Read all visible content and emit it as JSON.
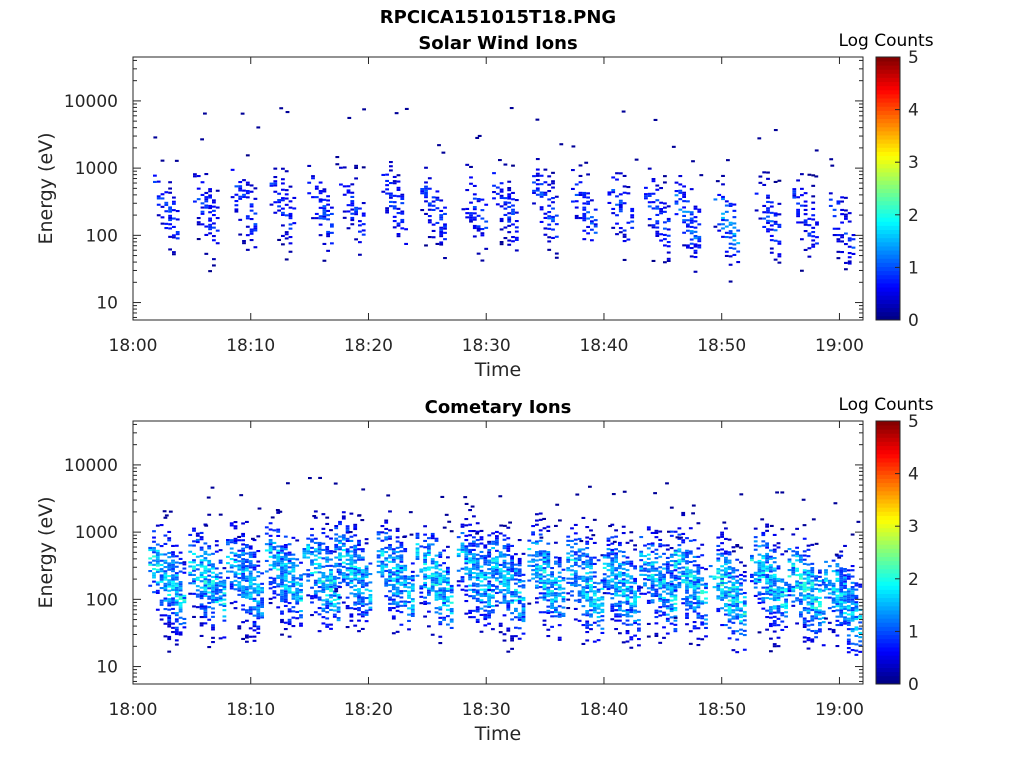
{
  "page_title": "RPCICA151015T18.PNG",
  "chart_data": [
    {
      "type": "heatmap",
      "title": "Solar Wind Ions",
      "xlabel": "Time",
      "ylabel": "Energy (eV)",
      "x_ticks": [
        "18:00",
        "18:10",
        "18:20",
        "18:30",
        "18:40",
        "18:50",
        "19:00"
      ],
      "x_range": [
        "18:00",
        "19:02"
      ],
      "y_scale": "log",
      "y_range": [
        5.5,
        45000
      ],
      "y_ticks": [
        10,
        100,
        1000,
        10000
      ],
      "y_tick_labels": [
        "10",
        "100",
        "1000",
        "10000"
      ],
      "colorbar": {
        "label": "Log Counts",
        "range": [
          0,
          5
        ],
        "ticks": [
          "0",
          "1",
          "2",
          "3",
          "4",
          "5"
        ],
        "colormap": "jet"
      },
      "grid": false,
      "bursts": [
        {
          "t": 2.9,
          "e": 220,
          "intensity": 0.9
        },
        {
          "t": 6.3,
          "e": 200,
          "intensity": 0.9
        },
        {
          "t": 9.5,
          "e": 250,
          "intensity": 0.9
        },
        {
          "t": 12.8,
          "e": 240,
          "intensity": 0.9
        },
        {
          "t": 16.0,
          "e": 230,
          "intensity": 1.0
        },
        {
          "t": 18.7,
          "e": 250,
          "intensity": 0.9
        },
        {
          "t": 22.3,
          "e": 260,
          "intensity": 0.9
        },
        {
          "t": 25.6,
          "e": 230,
          "intensity": 0.9
        },
        {
          "t": 29.1,
          "e": 220,
          "intensity": 0.9
        },
        {
          "t": 31.7,
          "e": 240,
          "intensity": 0.9
        },
        {
          "t": 35.1,
          "e": 250,
          "intensity": 1.0
        },
        {
          "t": 38.4,
          "e": 200,
          "intensity": 1.0
        },
        {
          "t": 41.5,
          "e": 220,
          "intensity": 1.0
        },
        {
          "t": 44.6,
          "e": 180,
          "intensity": 1.0
        },
        {
          "t": 47.2,
          "e": 150,
          "intensity": 1.2
        },
        {
          "t": 50.5,
          "e": 130,
          "intensity": 1.4
        },
        {
          "t": 54.0,
          "e": 170,
          "intensity": 1.0
        },
        {
          "t": 57.2,
          "e": 160,
          "intensity": 0.9
        },
        {
          "t": 60.3,
          "e": 120,
          "intensity": 0.9
        }
      ]
    },
    {
      "type": "heatmap",
      "title": "Cometary Ions",
      "xlabel": "Time",
      "ylabel": "Energy (eV)",
      "x_ticks": [
        "18:00",
        "18:10",
        "18:20",
        "18:30",
        "18:40",
        "18:50",
        "19:00"
      ],
      "x_range": [
        "18:00",
        "19:02"
      ],
      "y_scale": "log",
      "y_range": [
        5.5,
        45000
      ],
      "y_ticks": [
        10,
        100,
        1000,
        10000
      ],
      "y_tick_labels": [
        "10",
        "100",
        "1000",
        "10000"
      ],
      "colorbar": {
        "label": "Log Counts",
        "range": [
          0,
          5
        ],
        "ticks": [
          "0",
          "1",
          "2",
          "3",
          "4",
          "5"
        ],
        "colormap": "jet"
      },
      "grid": false,
      "bursts": [
        {
          "t": 2.9,
          "e": 180,
          "intensity": 1.8
        },
        {
          "t": 6.3,
          "e": 170,
          "intensity": 1.8
        },
        {
          "t": 9.5,
          "e": 190,
          "intensity": 1.6
        },
        {
          "t": 12.8,
          "e": 220,
          "intensity": 1.7
        },
        {
          "t": 16.0,
          "e": 200,
          "intensity": 1.8
        },
        {
          "t": 18.7,
          "e": 230,
          "intensity": 1.7
        },
        {
          "t": 22.3,
          "e": 200,
          "intensity": 1.7
        },
        {
          "t": 25.6,
          "e": 190,
          "intensity": 1.8
        },
        {
          "t": 29.1,
          "e": 210,
          "intensity": 1.7
        },
        {
          "t": 31.7,
          "e": 180,
          "intensity": 1.7
        },
        {
          "t": 35.1,
          "e": 200,
          "intensity": 1.8
        },
        {
          "t": 38.4,
          "e": 160,
          "intensity": 1.8
        },
        {
          "t": 41.5,
          "e": 150,
          "intensity": 1.7
        },
        {
          "t": 44.6,
          "e": 170,
          "intensity": 1.7
        },
        {
          "t": 47.2,
          "e": 190,
          "intensity": 1.8
        },
        {
          "t": 50.5,
          "e": 120,
          "intensity": 1.9
        },
        {
          "t": 54.0,
          "e": 170,
          "intensity": 1.8
        },
        {
          "t": 57.2,
          "e": 130,
          "intensity": 1.9
        },
        {
          "t": 60.3,
          "e": 90,
          "intensity": 1.7
        }
      ]
    }
  ]
}
